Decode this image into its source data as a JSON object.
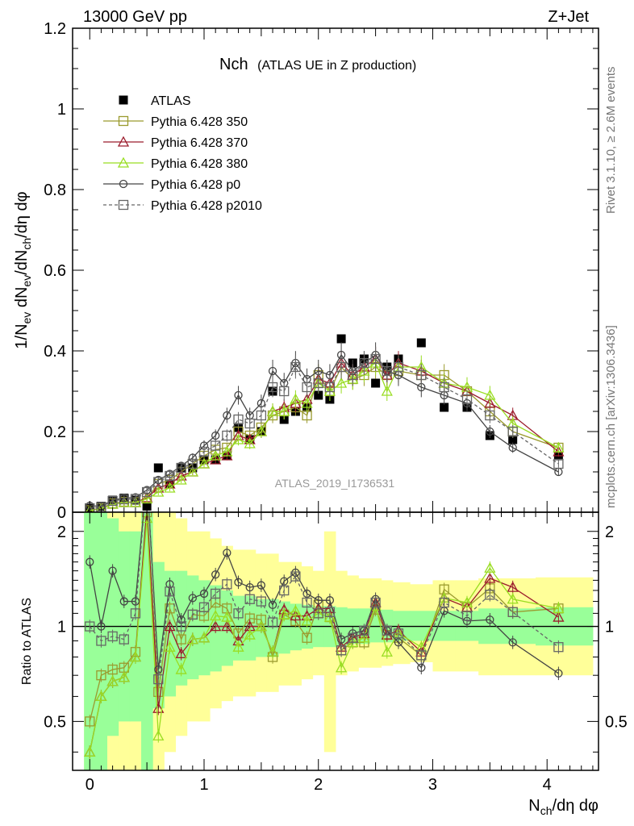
{
  "header": {
    "left": "13000 GeV pp",
    "right": "Z+Jet",
    "side_top": "Rivet 3.1.10, ≥ 2.6M events",
    "side_bottom": "mcplots.cern.ch [arXiv:1306.3436]",
    "watermark": "ATLAS_2019_I1736531"
  },
  "colors": {
    "atlas": "#000000",
    "p350": "#9a9a2e",
    "p370": "#9b1c2c",
    "p380": "#99dd22",
    "p0": "#444444",
    "p2010": "#666666",
    "band_inner": "#99ff99",
    "band_outer": "#ffff99"
  },
  "chart_data": [
    {
      "type": "line",
      "title": "Nch",
      "subtitle": "(ATLAS UE in Z production)",
      "xlabel": "N_ch/dη dφ",
      "ylabel": "1/N_ev dN_ev/dN_ch/dη dφ",
      "xlim": [
        -0.15,
        4.45
      ],
      "ylim": [
        0,
        1.2
      ],
      "yticks": [
        "0",
        "0.2",
        "0.4",
        "0.6",
        "0.8",
        "1",
        "1.2"
      ],
      "xticks": [
        "0",
        "1",
        "2",
        "3",
        "4"
      ],
      "legend_position": "top-left",
      "x": [
        0,
        0.1,
        0.2,
        0.3,
        0.4,
        0.5,
        0.6,
        0.7,
        0.8,
        0.9,
        1.0,
        1.1,
        1.2,
        1.3,
        1.4,
        1.5,
        1.6,
        1.7,
        1.8,
        1.9,
        2.0,
        2.1,
        2.2,
        2.3,
        2.4,
        2.5,
        2.6,
        2.7,
        2.9,
        3.1,
        3.3,
        3.5,
        3.7,
        4.1
      ],
      "series": [
        {
          "name": "ATLAS",
          "marker": "filled-square",
          "values": [
            0.01,
            0.015,
            0.03,
            0.035,
            0.03,
            0.015,
            0.11,
            0.07,
            0.11,
            0.11,
            0.13,
            0.13,
            0.14,
            0.21,
            0.18,
            0.2,
            0.3,
            0.23,
            0.25,
            0.26,
            0.29,
            0.28,
            0.43,
            0.37,
            0.38,
            0.32,
            0.36,
            0.38,
            0.42,
            0.26,
            0.26,
            0.19,
            0.18,
            0.14
          ]
        },
        {
          "name": "Pythia 6.428 350",
          "marker": "open-square",
          "values": [
            0.005,
            0.01,
            0.022,
            0.026,
            0.025,
            0.035,
            0.07,
            0.08,
            0.1,
            0.12,
            0.14,
            0.155,
            0.16,
            0.2,
            0.19,
            0.21,
            0.24,
            0.25,
            0.26,
            0.24,
            0.34,
            0.3,
            0.36,
            0.33,
            0.34,
            0.36,
            0.34,
            0.35,
            0.34,
            0.34,
            0.3,
            0.25,
            0.2,
            0.16
          ]
        },
        {
          "name": "Pythia 6.428 370",
          "marker": "open-triangle",
          "values": [
            0.004,
            0.009,
            0.02,
            0.024,
            0.024,
            0.036,
            0.06,
            0.07,
            0.09,
            0.1,
            0.12,
            0.13,
            0.14,
            0.19,
            0.18,
            0.2,
            0.25,
            0.26,
            0.27,
            0.28,
            0.33,
            0.32,
            0.37,
            0.34,
            0.36,
            0.38,
            0.34,
            0.37,
            0.35,
            0.32,
            0.3,
            0.27,
            0.24,
            0.15
          ]
        },
        {
          "name": "Pythia 6.428 380",
          "marker": "open-triangle",
          "values": [
            0.004,
            0.009,
            0.02,
            0.024,
            0.024,
            0.033,
            0.05,
            0.06,
            0.08,
            0.1,
            0.12,
            0.14,
            0.15,
            0.18,
            0.17,
            0.2,
            0.25,
            0.25,
            0.28,
            0.27,
            0.32,
            0.3,
            0.32,
            0.33,
            0.35,
            0.37,
            0.3,
            0.36,
            0.36,
            0.32,
            0.31,
            0.29,
            0.22,
            0.16
          ]
        },
        {
          "name": "Pythia 6.428 p0",
          "marker": "open-circle",
          "values": [
            0.016,
            0.015,
            0.03,
            0.035,
            0.037,
            0.055,
            0.08,
            0.095,
            0.115,
            0.135,
            0.165,
            0.19,
            0.24,
            0.29,
            0.24,
            0.27,
            0.35,
            0.32,
            0.37,
            0.33,
            0.35,
            0.34,
            0.39,
            0.35,
            0.37,
            0.39,
            0.35,
            0.34,
            0.31,
            0.29,
            0.27,
            0.2,
            0.16,
            0.1
          ]
        },
        {
          "name": "Pythia 6.428 p2010",
          "marker": "open-square-dashed",
          "values": [
            0.01,
            0.013,
            0.028,
            0.032,
            0.033,
            0.05,
            0.075,
            0.09,
            0.11,
            0.12,
            0.15,
            0.165,
            0.19,
            0.23,
            0.22,
            0.24,
            0.31,
            0.3,
            0.36,
            0.31,
            0.32,
            0.31,
            0.36,
            0.34,
            0.37,
            0.38,
            0.35,
            0.36,
            0.34,
            0.31,
            0.28,
            0.24,
            0.2,
            0.12
          ]
        }
      ]
    },
    {
      "type": "line",
      "ylabel": "Ratio to ATLAS",
      "ylim": [
        0.35,
        2.3
      ],
      "ylog": true,
      "yticks": [
        "0.5",
        "1",
        "2"
      ],
      "x": [
        0,
        0.1,
        0.2,
        0.3,
        0.4,
        0.5,
        0.6,
        0.7,
        0.8,
        0.9,
        1.0,
        1.1,
        1.2,
        1.3,
        1.4,
        1.5,
        1.6,
        1.7,
        1.8,
        1.9,
        2.0,
        2.1,
        2.2,
        2.3,
        2.4,
        2.5,
        2.6,
        2.7,
        2.9,
        3.1,
        3.3,
        3.5,
        3.7,
        4.1
      ],
      "band_inner": [
        [
          0.3,
          3.0
        ],
        [
          0.3,
          3.0
        ],
        [
          0.45,
          2.2
        ],
        [
          0.5,
          2.0
        ],
        [
          0.5,
          2.0
        ],
        [
          0.35,
          3.0
        ],
        [
          0.55,
          1.6
        ],
        [
          0.6,
          1.5
        ],
        [
          0.65,
          1.5
        ],
        [
          0.68,
          1.45
        ],
        [
          0.7,
          1.4
        ],
        [
          0.72,
          1.35
        ],
        [
          0.75,
          1.3
        ],
        [
          0.78,
          1.25
        ],
        [
          0.78,
          1.25
        ],
        [
          0.8,
          1.22
        ],
        [
          0.8,
          1.22
        ],
        [
          0.82,
          1.2
        ],
        [
          0.84,
          1.18
        ],
        [
          0.85,
          1.17
        ],
        [
          0.86,
          1.16
        ],
        [
          0.86,
          1.16
        ],
        [
          0.87,
          1.15
        ],
        [
          0.88,
          1.14
        ],
        [
          0.88,
          1.14
        ],
        [
          0.89,
          1.13
        ],
        [
          0.89,
          1.13
        ],
        [
          0.9,
          1.12
        ],
        [
          0.9,
          1.12
        ],
        [
          0.9,
          1.12
        ],
        [
          0.9,
          1.12
        ],
        [
          0.88,
          1.14
        ],
        [
          0.88,
          1.14
        ],
        [
          0.87,
          1.15
        ]
      ],
      "band_outer": [
        [
          0.3,
          3.0
        ],
        [
          0.3,
          3.0
        ],
        [
          0.3,
          3.0
        ],
        [
          0.3,
          3.0
        ],
        [
          0.3,
          3.0
        ],
        [
          0.3,
          3.0
        ],
        [
          0.35,
          2.6
        ],
        [
          0.4,
          2.3
        ],
        [
          0.45,
          2.2
        ],
        [
          0.5,
          2.0
        ],
        [
          0.5,
          2.0
        ],
        [
          0.55,
          1.9
        ],
        [
          0.58,
          1.8
        ],
        [
          0.6,
          1.75
        ],
        [
          0.6,
          1.75
        ],
        [
          0.62,
          1.7
        ],
        [
          0.62,
          1.7
        ],
        [
          0.65,
          1.6
        ],
        [
          0.65,
          1.6
        ],
        [
          0.68,
          1.55
        ],
        [
          0.7,
          1.5
        ],
        [
          0.4,
          2.0
        ],
        [
          0.7,
          1.5
        ],
        [
          0.72,
          1.45
        ],
        [
          0.74,
          1.42
        ],
        [
          0.74,
          1.42
        ],
        [
          0.75,
          1.4
        ],
        [
          0.76,
          1.38
        ],
        [
          0.77,
          1.36
        ],
        [
          0.72,
          1.4
        ],
        [
          0.72,
          1.4
        ],
        [
          0.7,
          1.42
        ],
        [
          0.7,
          1.42
        ],
        [
          0.7,
          1.43
        ]
      ],
      "series": [
        {
          "name": "Pythia 6.428 350",
          "values": [
            0.5,
            0.7,
            0.73,
            0.74,
            0.83,
            2.3,
            0.62,
            1.14,
            0.91,
            1.09,
            1.08,
            1.19,
            1.14,
            0.95,
            1.06,
            1.05,
            0.8,
            1.09,
            1.04,
            0.92,
            1.17,
            1.07,
            0.84,
            0.89,
            0.89,
            1.13,
            0.94,
            0.92,
            0.81,
            1.31,
            1.15,
            1.32,
            1.11,
            1.14
          ]
        },
        {
          "name": "Pythia 6.428 370",
          "values": [
            0.4,
            0.6,
            0.67,
            0.69,
            0.8,
            2.4,
            0.55,
            1.0,
            0.82,
            0.91,
            0.92,
            1.0,
            1.0,
            0.9,
            1.0,
            1.0,
            0.83,
            1.13,
            1.08,
            1.08,
            1.14,
            1.14,
            0.86,
            0.92,
            0.95,
            1.19,
            0.94,
            0.97,
            0.83,
            1.23,
            1.15,
            1.42,
            1.33,
            1.07
          ]
        },
        {
          "name": "Pythia 6.428 380",
          "values": [
            0.4,
            0.6,
            0.67,
            0.69,
            0.8,
            2.2,
            0.45,
            0.86,
            0.73,
            0.91,
            0.92,
            1.08,
            1.07,
            0.86,
            0.94,
            1.0,
            0.83,
            1.09,
            1.12,
            1.04,
            1.1,
            1.07,
            0.74,
            0.89,
            0.92,
            1.16,
            0.83,
            0.95,
            0.86,
            1.23,
            1.19,
            1.53,
            1.22,
            1.14
          ]
        },
        {
          "name": "Pythia 6.428 p0",
          "values": [
            1.6,
            1.0,
            1.5,
            1.2,
            1.2,
            3.0,
            0.73,
            1.36,
            1.05,
            1.23,
            1.27,
            1.46,
            1.71,
            1.38,
            1.33,
            1.35,
            1.17,
            1.39,
            1.48,
            1.27,
            1.21,
            1.21,
            0.91,
            0.95,
            0.97,
            1.22,
            0.97,
            0.89,
            0.74,
            1.12,
            1.04,
            1.05,
            0.89,
            0.71
          ]
        },
        {
          "name": "Pythia 6.428 p2010",
          "values": [
            1.0,
            0.9,
            0.93,
            0.91,
            1.1,
            3.0,
            0.68,
            1.29,
            1.0,
            1.09,
            1.15,
            1.27,
            1.36,
            1.1,
            1.22,
            1.2,
            1.03,
            1.3,
            1.44,
            1.19,
            1.1,
            1.11,
            0.84,
            0.92,
            0.97,
            1.19,
            0.97,
            0.95,
            0.81,
            1.19,
            1.08,
            1.26,
            1.11,
            0.86
          ]
        }
      ]
    }
  ]
}
